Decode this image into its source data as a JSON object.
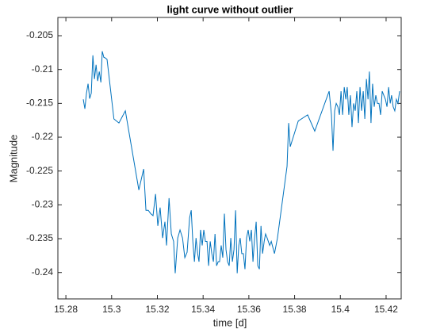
{
  "chart_data": {
    "type": "line",
    "title": "light curve without outlier",
    "x_label": "time [d]",
    "y_label": "Magnitude",
    "color": "#0072bd",
    "x": [
      15.2876,
      15.2883,
      15.289,
      15.2897,
      15.2904,
      15.2911,
      15.2918,
      15.2925,
      15.2932,
      15.2939,
      15.2946,
      15.2953,
      15.2959,
      15.2966,
      15.2973,
      15.298,
      15.301,
      15.3032,
      15.306,
      15.3119,
      15.314,
      15.315,
      15.316,
      15.3171,
      15.3181,
      15.3192,
      15.3202,
      15.3212,
      15.3223,
      15.3233,
      15.324,
      15.3251,
      15.3261,
      15.3271,
      15.3278,
      15.3289,
      15.3299,
      15.331,
      15.332,
      15.333,
      15.3341,
      15.3348,
      15.3355,
      15.3362,
      15.3369,
      15.3376,
      15.3382,
      15.3389,
      15.3396,
      15.3403,
      15.341,
      15.3417,
      15.3424,
      15.3431,
      15.3438,
      15.3445,
      15.3452,
      15.3459,
      15.3466,
      15.3472,
      15.3479,
      15.3486,
      15.3493,
      15.35,
      15.3507,
      15.3514,
      15.3521,
      15.3528,
      15.3535,
      15.3542,
      15.3549,
      15.3556,
      15.3562,
      15.3569,
      15.3576,
      15.3583,
      15.359,
      15.3597,
      15.3604,
      15.3611,
      15.3618,
      15.3625,
      15.3632,
      15.3639,
      15.3646,
      15.3653,
      15.366,
      15.3667,
      15.3673,
      15.368,
      15.3691,
      15.3698,
      15.3712,
      15.3725,
      15.3767,
      15.3774,
      15.3781,
      15.3816,
      15.3857,
      15.3888,
      15.3951,
      15.3961,
      15.3968,
      15.3975,
      15.3982,
      15.3989,
      15.3996,
      15.4003,
      15.401,
      15.4017,
      15.4024,
      15.403,
      15.4037,
      15.4044,
      15.4051,
      15.4058,
      15.4065,
      15.4072,
      15.4079,
      15.4086,
      15.4093,
      15.41,
      15.4107,
      15.4114,
      15.4121,
      15.4127,
      15.4134,
      15.4141,
      15.4148,
      15.4155,
      15.4162,
      15.4169,
      15.4176,
      15.4183,
      15.419,
      15.4197,
      15.4204,
      15.4211,
      15.4218,
      15.4224,
      15.4231,
      15.4238,
      15.4245,
      15.4252,
      15.4259
    ],
    "values": [
      -0.2144,
      -0.2158,
      -0.2135,
      -0.2121,
      -0.2143,
      -0.2135,
      -0.2079,
      -0.2114,
      -0.2093,
      -0.2117,
      -0.2103,
      -0.2119,
      -0.2073,
      -0.2082,
      -0.2083,
      -0.2085,
      -0.2173,
      -0.2179,
      -0.2161,
      -0.2278,
      -0.2247,
      -0.2308,
      -0.2308,
      -0.2313,
      -0.2316,
      -0.2284,
      -0.2331,
      -0.2304,
      -0.2349,
      -0.2325,
      -0.236,
      -0.229,
      -0.2343,
      -0.2354,
      -0.2401,
      -0.2349,
      -0.2337,
      -0.2349,
      -0.2378,
      -0.237,
      -0.2319,
      -0.2308,
      -0.2354,
      -0.2384,
      -0.2349,
      -0.2372,
      -0.2384,
      -0.2337,
      -0.236,
      -0.2337,
      -0.2354,
      -0.2354,
      -0.239,
      -0.2354,
      -0.2372,
      -0.2384,
      -0.2343,
      -0.239,
      -0.2384,
      -0.2384,
      -0.236,
      -0.2378,
      -0.2313,
      -0.2366,
      -0.2384,
      -0.239,
      -0.2349,
      -0.2384,
      -0.2366,
      -0.2308,
      -0.2401,
      -0.236,
      -0.2349,
      -0.2372,
      -0.2372,
      -0.2395,
      -0.2349,
      -0.2337,
      -0.2354,
      -0.2337,
      -0.2384,
      -0.2349,
      -0.2325,
      -0.239,
      -0.2395,
      -0.2331,
      -0.2372,
      -0.2354,
      -0.2343,
      -0.2349,
      -0.236,
      -0.2354,
      -0.2372,
      -0.2349,
      -0.2243,
      -0.2179,
      -0.2214,
      -0.2176,
      -0.2167,
      -0.2191,
      -0.2132,
      -0.2167,
      -0.222,
      -0.2161,
      -0.215,
      -0.2155,
      -0.2167,
      -0.2132,
      -0.2167,
      -0.2126,
      -0.2144,
      -0.2126,
      -0.2167,
      -0.2138,
      -0.2185,
      -0.215,
      -0.2161,
      -0.2132,
      -0.2179,
      -0.2126,
      -0.2161,
      -0.2132,
      -0.2173,
      -0.2114,
      -0.2144,
      -0.2103,
      -0.2179,
      -0.2121,
      -0.2155,
      -0.2138,
      -0.215,
      -0.215,
      -0.2167,
      -0.2132,
      -0.2138,
      -0.2144,
      -0.2155,
      -0.2126,
      -0.215,
      -0.2138,
      -0.2155,
      -0.2161,
      -0.2144,
      -0.215,
      -0.2132
    ],
    "xlim": [
      15.2765,
      15.4266
    ],
    "xticks": [
      15.28,
      15.3,
      15.32,
      15.34,
      15.36,
      15.38,
      15.4,
      15.42
    ],
    "ylim": [
      -0.2439,
      -0.2023
    ],
    "yticks": [
      -0.24,
      -0.235,
      -0.23,
      -0.225,
      -0.22,
      -0.215,
      -0.21,
      -0.205
    ]
  }
}
